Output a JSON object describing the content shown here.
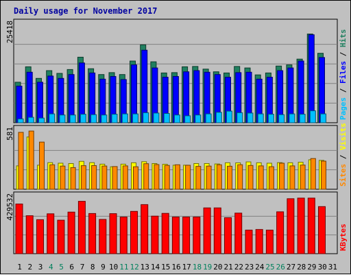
{
  "title": "Daily usage for November 2017",
  "colors": {
    "background": "#c0c0c0",
    "title": "#0000a0",
    "hits": "#208060",
    "files": "#0000ff",
    "pages": "#00c0ff",
    "visits": "#ffff00",
    "sites": "#ff8800",
    "kbytes": "#ff0000",
    "weekend_label": "#00805c",
    "day_label": "#000000"
  },
  "chart_data": [
    {
      "type": "bar",
      "title": "Daily usage for November 2017",
      "panel": "top",
      "ymax_label": "25418",
      "ylim": [
        0,
        25418
      ],
      "right_label": {
        "pages": "Pages",
        "files": "Files",
        "hits": "Hits",
        "sep": " / "
      },
      "categories": [
        "1",
        "2",
        "3",
        "4",
        "5",
        "6",
        "7",
        "8",
        "9",
        "10",
        "11",
        "12",
        "13",
        "14",
        "15",
        "16",
        "17",
        "18",
        "19",
        "20",
        "21",
        "22",
        "23",
        "24",
        "25",
        "26",
        "27",
        "28",
        "29",
        "30",
        "31"
      ],
      "series": [
        {
          "name": "Hits",
          "values": [
            10500,
            14500,
            11500,
            13500,
            12800,
            13800,
            17000,
            14000,
            12500,
            13000,
            12500,
            16000,
            20200,
            15800,
            12900,
            13000,
            14500,
            14600,
            13900,
            13200,
            12900,
            14600,
            14200,
            12400,
            12900,
            14700,
            15000,
            16500,
            23000,
            18000,
            0
          ]
        },
        {
          "name": "Files",
          "values": [
            9500,
            13100,
            10500,
            12100,
            11500,
            12500,
            15500,
            12900,
            11300,
            12000,
            11200,
            15000,
            18800,
            14200,
            11800,
            12000,
            13200,
            13500,
            13100,
            12500,
            11800,
            13000,
            13100,
            11300,
            11800,
            13500,
            14200,
            16000,
            22800,
            16900,
            0
          ]
        },
        {
          "name": "Pages",
          "values": [
            1000,
            1400,
            1200,
            2300,
            2000,
            2000,
            2200,
            2100,
            2000,
            2200,
            2300,
            2300,
            2600,
            2500,
            2400,
            2000,
            1800,
            2000,
            2300,
            2700,
            3000,
            2600,
            2500,
            2300,
            2200,
            2100,
            2300,
            2200,
            3100,
            2300,
            0
          ]
        }
      ]
    },
    {
      "type": "bar",
      "panel": "middle",
      "ymax_label": "581",
      "ylim": [
        0,
        581
      ],
      "right_label": {
        "sites": "Sites",
        "visits": "Visits",
        "sep": " / "
      },
      "categories": [
        "1",
        "2",
        "3",
        "4",
        "5",
        "6",
        "7",
        "8",
        "9",
        "10",
        "11",
        "12",
        "13",
        "14",
        "15",
        "16",
        "17",
        "18",
        "19",
        "20",
        "21",
        "22",
        "23",
        "24",
        "25",
        "26",
        "27",
        "28",
        "29",
        "30",
        "31"
      ],
      "series": [
        {
          "name": "Visits",
          "values": [
            233,
            521,
            240,
            265,
            260,
            256,
            278,
            265,
            250,
            224,
            250,
            264,
            275,
            256,
            249,
            240,
            240,
            256,
            256,
            252,
            264,
            263,
            273,
            264,
            260,
            265,
            264,
            269,
            294,
            288,
            0
          ]
        },
        {
          "name": "Sites",
          "values": [
            567,
            580,
            470,
            244,
            231,
            216,
            235,
            236,
            232,
            226,
            233,
            224,
            255,
            246,
            238,
            244,
            239,
            228,
            231,
            244,
            230,
            245,
            237,
            233,
            225,
            260,
            233,
            241,
            306,
            280,
            0
          ]
        }
      ]
    },
    {
      "type": "bar",
      "panel": "bottom",
      "ymax_label": "429532",
      "ylim": [
        0,
        429532
      ],
      "right_label": {
        "kbytes": "KBytes"
      },
      "categories": [
        "1",
        "2",
        "3",
        "4",
        "5",
        "6",
        "7",
        "8",
        "9",
        "10",
        "11",
        "12",
        "13",
        "14",
        "15",
        "16",
        "17",
        "18",
        "19",
        "20",
        "21",
        "22",
        "23",
        "24",
        "25",
        "26",
        "27",
        "28",
        "29",
        "30",
        "31"
      ],
      "series": [
        {
          "name": "KBytes",
          "values": [
            380000,
            290000,
            260000,
            305000,
            256000,
            318000,
            400000,
            307000,
            262000,
            306000,
            280000,
            323000,
            375000,
            287000,
            308000,
            280000,
            280000,
            280000,
            350000,
            350000,
            275000,
            310000,
            180000,
            185000,
            180000,
            320000,
            420000,
            425000,
            425000,
            360000,
            0
          ]
        }
      ]
    }
  ],
  "x_labels": [
    {
      "text": "1",
      "weekend": false
    },
    {
      "text": "2",
      "weekend": false
    },
    {
      "text": "3",
      "weekend": false
    },
    {
      "text": "4",
      "weekend": true
    },
    {
      "text": "5",
      "weekend": true
    },
    {
      "text": "6",
      "weekend": false
    },
    {
      "text": "7",
      "weekend": false
    },
    {
      "text": "8",
      "weekend": false
    },
    {
      "text": "9",
      "weekend": false
    },
    {
      "text": "10",
      "weekend": false
    },
    {
      "text": "11",
      "weekend": true
    },
    {
      "text": "12",
      "weekend": true
    },
    {
      "text": "13",
      "weekend": false
    },
    {
      "text": "14",
      "weekend": false
    },
    {
      "text": "15",
      "weekend": false
    },
    {
      "text": "16",
      "weekend": false
    },
    {
      "text": "17",
      "weekend": false
    },
    {
      "text": "18",
      "weekend": true
    },
    {
      "text": "19",
      "weekend": true
    },
    {
      "text": "20",
      "weekend": false
    },
    {
      "text": "21",
      "weekend": false
    },
    {
      "text": "22",
      "weekend": false
    },
    {
      "text": "23",
      "weekend": false
    },
    {
      "text": "24",
      "weekend": false
    },
    {
      "text": "25",
      "weekend": true
    },
    {
      "text": "26",
      "weekend": true
    },
    {
      "text": "27",
      "weekend": false
    },
    {
      "text": "28",
      "weekend": false
    },
    {
      "text": "29",
      "weekend": false
    },
    {
      "text": "30",
      "weekend": false
    },
    {
      "text": "31",
      "weekend": false
    }
  ]
}
